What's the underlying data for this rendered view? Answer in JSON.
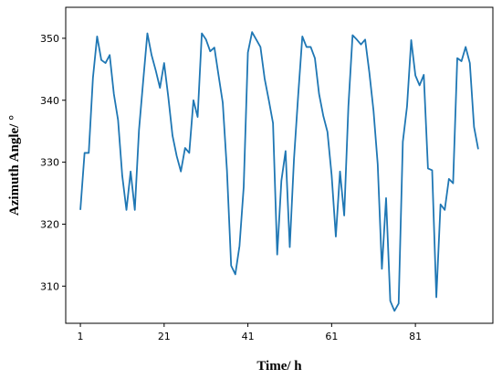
{
  "chart_data": {
    "type": "line",
    "title": "",
    "xlabel": "Time/ h",
    "ylabel": "Azimuth Angle/ °",
    "xlim": [
      -2.5,
      99.5
    ],
    "ylim": [
      304,
      355
    ],
    "xticks": [
      1,
      21,
      41,
      61,
      81
    ],
    "yticks": [
      310,
      320,
      330,
      340,
      350
    ],
    "grid": false,
    "legend": "none",
    "series": [
      {
        "color": "#1f77b4",
        "x": [
          1,
          2,
          3,
          4,
          5,
          6,
          7,
          8,
          9,
          10,
          11,
          12,
          13,
          14,
          15,
          16,
          17,
          18,
          19,
          20,
          21,
          22,
          23,
          24,
          25,
          26,
          27,
          28,
          29,
          30,
          31,
          32,
          33,
          34,
          35,
          36,
          37,
          38,
          39,
          40,
          41,
          42,
          43,
          44,
          45,
          46,
          47,
          48,
          49,
          50,
          51,
          52,
          53,
          54,
          55,
          56,
          57,
          58,
          59,
          60,
          61,
          62,
          63,
          64,
          65,
          66,
          67,
          68,
          69,
          70,
          71,
          72,
          73,
          74,
          75,
          76,
          77,
          78,
          79,
          80,
          81,
          82,
          83,
          84,
          85,
          86,
          87,
          88,
          89,
          90,
          91,
          92,
          93,
          94,
          95,
          96
        ],
        "y": [
          322.3,
          331.5,
          331.5,
          343.6,
          350.3,
          346.5,
          346.0,
          347.3,
          341.0,
          336.8,
          327.8,
          322.3,
          328.5,
          322.3,
          335.2,
          343.1,
          350.8,
          347.3,
          344.8,
          342.0,
          346.0,
          340.5,
          334.3,
          331.0,
          328.5,
          332.3,
          331.5,
          340.0,
          337.3,
          350.8,
          349.8,
          347.9,
          348.5,
          344.0,
          339.6,
          328.7,
          313.3,
          311.9,
          316.5,
          326.0,
          347.7,
          351.0,
          349.8,
          348.6,
          343.5,
          340.0,
          336.3,
          315.1,
          327.0,
          331.8,
          316.3,
          330.4,
          340.7,
          350.3,
          348.6,
          348.6,
          346.8,
          341.0,
          337.5,
          334.9,
          327.9,
          318.0,
          328.5,
          321.4,
          339.0,
          350.5,
          349.8,
          349.0,
          349.8,
          344.5,
          338.3,
          329.7,
          312.8,
          324.2,
          307.6,
          306.0,
          307.2,
          333.3,
          339.0,
          349.7,
          344.0,
          342.4,
          344.1,
          329.0,
          328.7,
          308.2,
          323.2,
          322.3,
          327.3,
          326.6,
          346.8,
          346.3,
          348.6,
          346.0,
          335.7,
          332.1
        ]
      }
    ]
  }
}
